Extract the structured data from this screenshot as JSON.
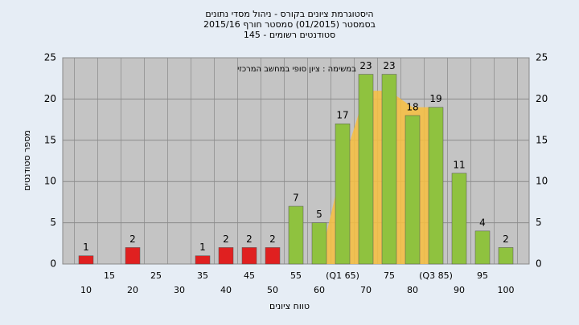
{
  "chart_data": {
    "type": "bar",
    "title": [
      "היסטוגרמת ציונים בקורס - ניהול מסדי נתונים",
      "בסמסטר (01/2015) סמסטר חורף 2015/16",
      "סטודנטים רשומים - 145"
    ],
    "annotation": "במשימה : ציון סופי במחשב המרכזי",
    "x_label": "טווח ציונים",
    "y_label": "מספר סטודנטים",
    "categories": [
      "10",
      "15",
      "20",
      "25",
      "30",
      "35",
      "40",
      "45",
      "50",
      "55",
      "60",
      "(Q1 65)",
      "70",
      "75",
      "80",
      "(Q3 85)",
      "90",
      "95",
      "100"
    ],
    "values": [
      1,
      null,
      2,
      null,
      null,
      1,
      2,
      2,
      2,
      7,
      5,
      17,
      23,
      23,
      18,
      19,
      11,
      4,
      2
    ],
    "colors": [
      "#e02020",
      null,
      "#e02020",
      null,
      null,
      "#e02020",
      "#e02020",
      "#e02020",
      "#e02020",
      "#8fc23f",
      "#8fc23f",
      "#8fc23f",
      "#8fc23f",
      "#8fc23f",
      "#8fc23f",
      "#8fc23f",
      "#8fc23f",
      "#8fc23f",
      "#8fc23f"
    ],
    "area": {
      "color": "#f8c040",
      "values": [
        null,
        null,
        null,
        null,
        null,
        null,
        null,
        null,
        null,
        null,
        0,
        12,
        21,
        21,
        19,
        19,
        null,
        null,
        null
      ]
    },
    "ylim": [
      0,
      25
    ],
    "yticks": [
      0,
      5,
      10,
      15,
      20,
      25
    ],
    "grid": true
  }
}
